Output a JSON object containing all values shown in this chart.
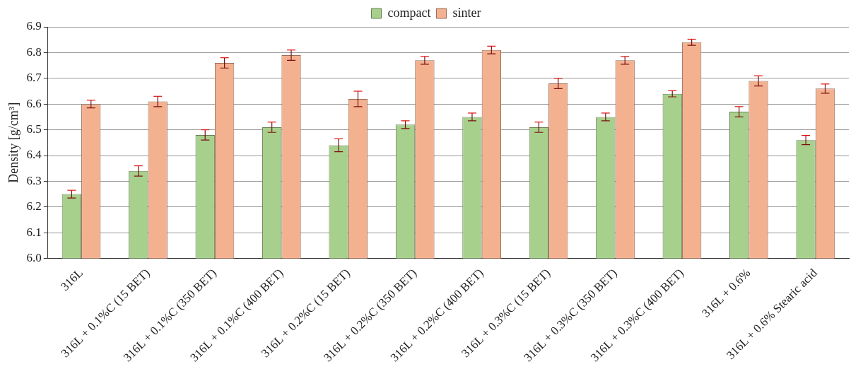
{
  "chart_data": {
    "type": "bar",
    "ylabel": "Density [g/cm³]",
    "categories": [
      "316L",
      "316L + 0.1%C (15 BET)",
      "316L + 0.1%C (350 BET)",
      "316L + 0.1%C (400 BET)",
      "316L + 0.2%C (15 BET)",
      "316L + 0.2%C (350 BET)",
      "316L + 0.2%C (400 BET)",
      "316L + 0.3%C (15 BET)",
      "316L + 0.3%C (350 BET)",
      "316L + 0.3%C (400 BET)",
      "316L + 0.6%",
      "316L + 0.6% Stearic acid"
    ],
    "series": [
      {
        "name": "compact",
        "color": "#a8d08d",
        "values": [
          6.25,
          6.34,
          6.48,
          6.51,
          6.44,
          6.52,
          6.55,
          6.51,
          6.55,
          6.64,
          6.57,
          6.46
        ],
        "errors": [
          0.015,
          0.02,
          0.02,
          0.02,
          0.025,
          0.015,
          0.015,
          0.02,
          0.015,
          0.012,
          0.02,
          0.018
        ]
      },
      {
        "name": "sinter",
        "color": "#f4b190",
        "values": [
          6.6,
          6.61,
          6.76,
          6.79,
          6.62,
          6.77,
          6.81,
          6.68,
          6.77,
          6.84,
          6.69,
          6.66
        ],
        "errors": [
          0.015,
          0.02,
          0.02,
          0.02,
          0.03,
          0.015,
          0.015,
          0.02,
          0.015,
          0.012,
          0.02,
          0.018
        ]
      }
    ],
    "ylim": [
      6.0,
      6.9
    ],
    "yticks": [
      {
        "value": 6.0,
        "label": "6.0"
      },
      {
        "value": 6.1,
        "label": "6.1"
      },
      {
        "value": 6.2,
        "label": "6.2"
      },
      {
        "value": 6.3,
        "label": "6.3"
      },
      {
        "value": 6.4,
        "label": "6.4"
      },
      {
        "value": 6.5,
        "label": "6.5"
      },
      {
        "value": 6.6,
        "label": "6.6"
      },
      {
        "value": 6.7,
        "label": "6.7"
      },
      {
        "value": 6.8,
        "label": "6.8"
      },
      {
        "value": 6.9,
        "label": "6.9"
      }
    ],
    "grid": "y",
    "legend": "top"
  }
}
